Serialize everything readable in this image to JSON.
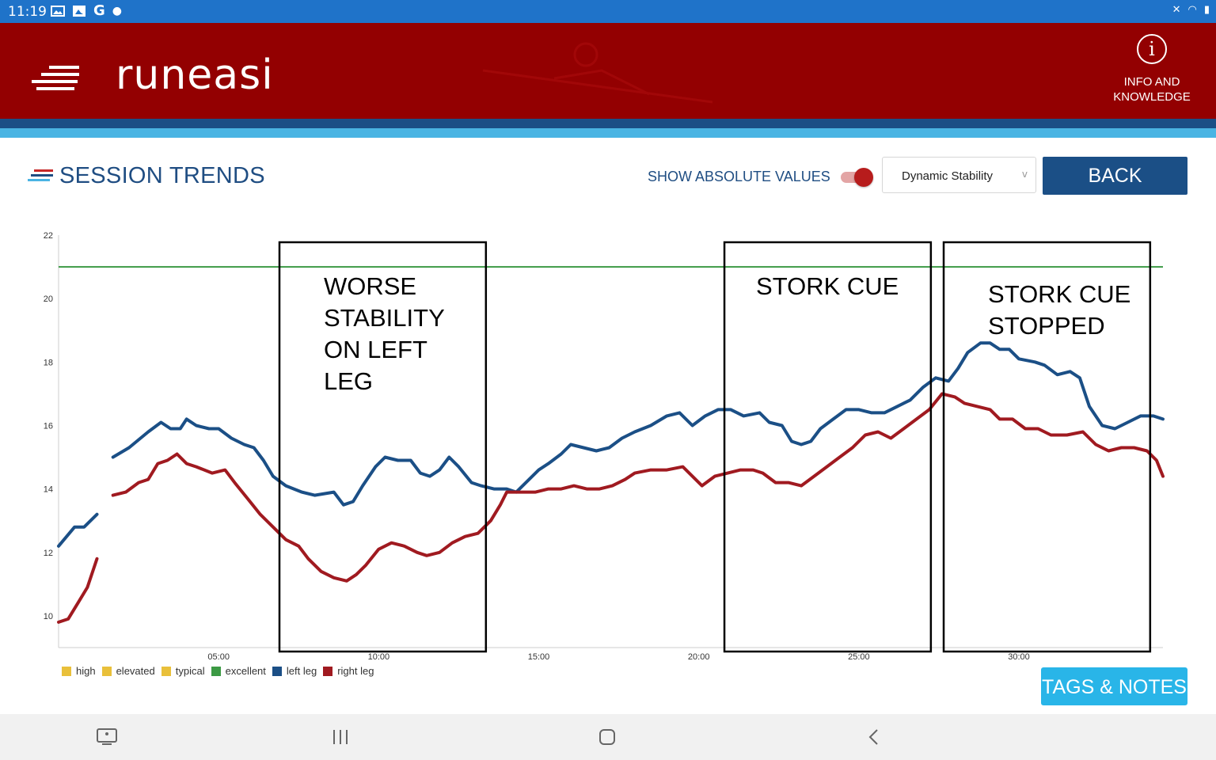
{
  "status_bar": {
    "time": "11:19",
    "left_icons": [
      "image-icon",
      "photo-icon",
      "google-icon",
      "dot-icon"
    ],
    "right_icons": [
      "mute-icon",
      "wifi-icon",
      "battery-icon"
    ]
  },
  "header": {
    "logo_text": "runeasi",
    "info_label_line1": "INFO AND",
    "info_label_line2": "KNOWLEDGE"
  },
  "toolbar": {
    "title": "SESSION TRENDS",
    "abs_values_label": "SHOW ABSOLUTE VALUES",
    "abs_values_on": true,
    "metric_selected": "Dynamic Stability",
    "dropdown_chevron": "v",
    "back_label": "BACK"
  },
  "chart_data": {
    "type": "line",
    "x_unit": "minutes",
    "xlim": [
      0,
      34.5
    ],
    "ylim": [
      9,
      22
    ],
    "x_ticks": [
      "05:00",
      "10:00",
      "15:00",
      "20:00",
      "25:00",
      "30:00"
    ],
    "y_ticks": [
      "10",
      "12",
      "14",
      "16",
      "18",
      "20",
      "22"
    ],
    "reference_line": {
      "name": "excellent",
      "y": 21,
      "color": "#3c9a44"
    },
    "series": [
      {
        "name": "left leg",
        "color": "#1b4f86",
        "segments": [
          [
            [
              0,
              12.2
            ],
            [
              0.5,
              12.8
            ],
            [
              0.8,
              12.8
            ],
            [
              1.2,
              13.2
            ]
          ],
          [
            [
              1.7,
              15.0
            ],
            [
              2.2,
              15.3
            ],
            [
              2.8,
              15.8
            ],
            [
              3.2,
              16.1
            ],
            [
              3.5,
              15.9
            ],
            [
              3.8,
              15.9
            ],
            [
              4.0,
              16.2
            ],
            [
              4.3,
              16.0
            ],
            [
              4.7,
              15.9
            ],
            [
              5.0,
              15.9
            ],
            [
              5.4,
              15.6
            ],
            [
              5.8,
              15.4
            ],
            [
              6.1,
              15.3
            ],
            [
              6.4,
              14.9
            ],
            [
              6.7,
              14.4
            ],
            [
              7.1,
              14.1
            ],
            [
              7.6,
              13.9
            ],
            [
              8.0,
              13.8
            ],
            [
              8.6,
              13.9
            ],
            [
              8.9,
              13.5
            ],
            [
              9.2,
              13.6
            ],
            [
              9.5,
              14.1
            ],
            [
              9.9,
              14.7
            ],
            [
              10.2,
              15.0
            ],
            [
              10.6,
              14.9
            ],
            [
              11.0,
              14.9
            ],
            [
              11.3,
              14.5
            ],
            [
              11.6,
              14.4
            ],
            [
              11.9,
              14.6
            ],
            [
              12.2,
              15.0
            ],
            [
              12.5,
              14.7
            ],
            [
              12.9,
              14.2
            ],
            [
              13.2,
              14.1
            ],
            [
              13.6,
              14.0
            ],
            [
              14.0,
              14.0
            ],
            [
              14.3,
              13.9
            ],
            [
              14.6,
              14.2
            ],
            [
              15.0,
              14.6
            ],
            [
              15.3,
              14.8
            ],
            [
              15.7,
              15.1
            ],
            [
              16.0,
              15.4
            ],
            [
              16.4,
              15.3
            ],
            [
              16.8,
              15.2
            ],
            [
              17.2,
              15.3
            ],
            [
              17.6,
              15.6
            ],
            [
              18.0,
              15.8
            ],
            [
              18.5,
              16.0
            ],
            [
              19.0,
              16.3
            ],
            [
              19.4,
              16.4
            ],
            [
              19.8,
              16.0
            ],
            [
              20.2,
              16.3
            ],
            [
              20.6,
              16.5
            ],
            [
              21.0,
              16.5
            ],
            [
              21.4,
              16.3
            ],
            [
              21.9,
              16.4
            ],
            [
              22.2,
              16.1
            ],
            [
              22.6,
              16.0
            ],
            [
              22.9,
              15.5
            ],
            [
              23.2,
              15.4
            ],
            [
              23.5,
              15.5
            ],
            [
              23.8,
              15.9
            ],
            [
              24.2,
              16.2
            ],
            [
              24.6,
              16.5
            ],
            [
              25.0,
              16.5
            ],
            [
              25.4,
              16.4
            ],
            [
              25.8,
              16.4
            ],
            [
              26.2,
              16.6
            ],
            [
              26.6,
              16.8
            ],
            [
              27.0,
              17.2
            ],
            [
              27.4,
              17.5
            ],
            [
              27.8,
              17.4
            ],
            [
              28.1,
              17.8
            ],
            [
              28.4,
              18.3
            ],
            [
              28.8,
              18.6
            ],
            [
              29.1,
              18.6
            ],
            [
              29.4,
              18.4
            ],
            [
              29.7,
              18.4
            ],
            [
              30.0,
              18.1
            ],
            [
              30.5,
              18.0
            ],
            [
              30.8,
              17.9
            ],
            [
              31.2,
              17.6
            ],
            [
              31.6,
              17.7
            ],
            [
              31.9,
              17.5
            ],
            [
              32.2,
              16.6
            ],
            [
              32.6,
              16.0
            ],
            [
              33.0,
              15.9
            ],
            [
              33.4,
              16.1
            ],
            [
              33.8,
              16.3
            ],
            [
              34.2,
              16.3
            ],
            [
              34.5,
              16.2
            ]
          ]
        ]
      },
      {
        "name": "right leg",
        "color": "#a01a20",
        "segments": [
          [
            [
              0,
              9.8
            ],
            [
              0.3,
              9.9
            ],
            [
              0.6,
              10.4
            ],
            [
              0.9,
              10.9
            ],
            [
              1.2,
              11.8
            ]
          ],
          [
            [
              1.7,
              13.8
            ],
            [
              2.1,
              13.9
            ],
            [
              2.5,
              14.2
            ],
            [
              2.8,
              14.3
            ],
            [
              3.1,
              14.8
            ],
            [
              3.4,
              14.9
            ],
            [
              3.7,
              15.1
            ],
            [
              4.0,
              14.8
            ],
            [
              4.3,
              14.7
            ],
            [
              4.8,
              14.5
            ],
            [
              5.2,
              14.6
            ],
            [
              5.5,
              14.2
            ],
            [
              5.9,
              13.7
            ],
            [
              6.3,
              13.2
            ],
            [
              6.7,
              12.8
            ],
            [
              7.1,
              12.4
            ],
            [
              7.5,
              12.2
            ],
            [
              7.8,
              11.8
            ],
            [
              8.2,
              11.4
            ],
            [
              8.6,
              11.2
            ],
            [
              9.0,
              11.1
            ],
            [
              9.3,
              11.3
            ],
            [
              9.6,
              11.6
            ],
            [
              10.0,
              12.1
            ],
            [
              10.4,
              12.3
            ],
            [
              10.8,
              12.2
            ],
            [
              11.2,
              12.0
            ],
            [
              11.5,
              11.9
            ],
            [
              11.9,
              12.0
            ],
            [
              12.3,
              12.3
            ],
            [
              12.7,
              12.5
            ],
            [
              13.1,
              12.6
            ],
            [
              13.5,
              13.0
            ],
            [
              13.8,
              13.5
            ],
            [
              14.0,
              13.9
            ],
            [
              14.4,
              13.9
            ],
            [
              14.9,
              13.9
            ],
            [
              15.3,
              14.0
            ],
            [
              15.7,
              14.0
            ],
            [
              16.1,
              14.1
            ],
            [
              16.5,
              14.0
            ],
            [
              16.9,
              14.0
            ],
            [
              17.3,
              14.1
            ],
            [
              17.7,
              14.3
            ],
            [
              18.0,
              14.5
            ],
            [
              18.5,
              14.6
            ],
            [
              19.0,
              14.6
            ],
            [
              19.5,
              14.7
            ],
            [
              19.8,
              14.4
            ],
            [
              20.1,
              14.1
            ],
            [
              20.5,
              14.4
            ],
            [
              20.9,
              14.5
            ],
            [
              21.3,
              14.6
            ],
            [
              21.7,
              14.6
            ],
            [
              22.0,
              14.5
            ],
            [
              22.4,
              14.2
            ],
            [
              22.8,
              14.2
            ],
            [
              23.2,
              14.1
            ],
            [
              23.6,
              14.4
            ],
            [
              24.0,
              14.7
            ],
            [
              24.4,
              15.0
            ],
            [
              24.8,
              15.3
            ],
            [
              25.2,
              15.7
            ],
            [
              25.6,
              15.8
            ],
            [
              26.0,
              15.6
            ],
            [
              26.4,
              15.9
            ],
            [
              26.8,
              16.2
            ],
            [
              27.2,
              16.5
            ],
            [
              27.6,
              17.0
            ],
            [
              28.0,
              16.9
            ],
            [
              28.3,
              16.7
            ],
            [
              28.7,
              16.6
            ],
            [
              29.1,
              16.5
            ],
            [
              29.4,
              16.2
            ],
            [
              29.8,
              16.2
            ],
            [
              30.2,
              15.9
            ],
            [
              30.6,
              15.9
            ],
            [
              31.0,
              15.7
            ],
            [
              31.5,
              15.7
            ],
            [
              32.0,
              15.8
            ],
            [
              32.4,
              15.4
            ],
            [
              32.8,
              15.2
            ],
            [
              33.2,
              15.3
            ],
            [
              33.6,
              15.3
            ],
            [
              34.0,
              15.2
            ],
            [
              34.3,
              14.9
            ],
            [
              34.5,
              14.4
            ]
          ]
        ]
      }
    ],
    "annotations": [
      {
        "x_start": 6.9,
        "x_end": 13.35,
        "text": [
          "WORSE",
          "STABILITY",
          "ON LEFT",
          "LEG"
        ]
      },
      {
        "x_start": 20.8,
        "x_end": 27.25,
        "text": [
          "STORK CUE"
        ]
      },
      {
        "x_start": 27.65,
        "x_end": 34.1,
        "text": [
          "STORK CUE",
          "STOPPED"
        ]
      }
    ],
    "legend": [
      {
        "label": "high",
        "color": "#e9c03a"
      },
      {
        "label": "elevated",
        "color": "#e9c03a"
      },
      {
        "label": "typical",
        "color": "#e9c03a"
      },
      {
        "label": "excellent",
        "color": "#3c9a44"
      },
      {
        "label": "left leg",
        "color": "#1b4f86"
      },
      {
        "label": "right leg",
        "color": "#a01a20"
      }
    ]
  },
  "footer": {
    "tags_notes_label": "TAGS & NOTES"
  },
  "nav_bar": {
    "buttons": [
      "screen-icon",
      "recents-icon",
      "home-icon",
      "back-icon"
    ]
  }
}
